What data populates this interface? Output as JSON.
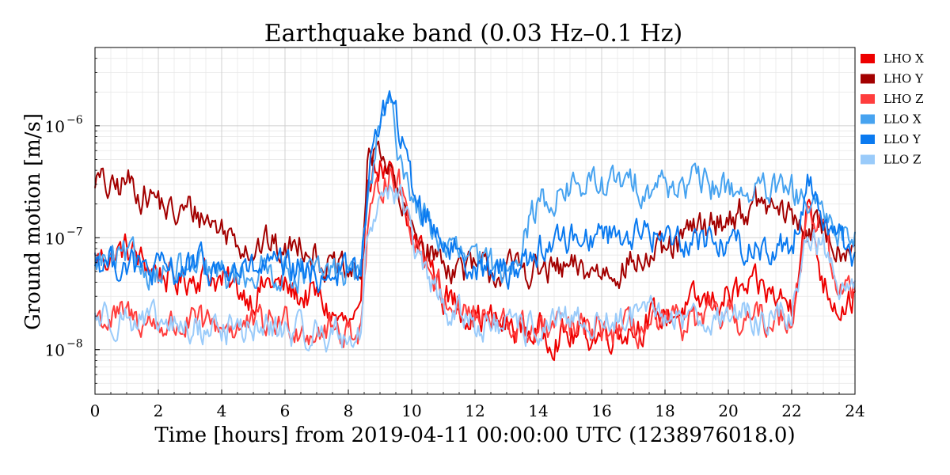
{
  "chart_data": {
    "type": "line",
    "title": "Earthquake band (0.03 Hz–0.1 Hz)",
    "xlabel": "Time [hours] from 2019-04-11 00:00:00 UTC (1238976018.0)",
    "ylabel": "Ground motion [m/s]",
    "xlim": [
      0,
      24
    ],
    "ylim": [
      4e-09,
      5e-06
    ],
    "yscale": "log",
    "grid": true,
    "legend_position": "right-outside",
    "x_ticks": [
      0,
      2,
      4,
      6,
      8,
      10,
      12,
      14,
      16,
      18,
      20,
      22,
      24
    ],
    "x_tick_labels": [
      "0",
      "2",
      "4",
      "6",
      "8",
      "10",
      "12",
      "14",
      "16",
      "18",
      "20",
      "22",
      "24"
    ],
    "y_ticks": [
      1e-08,
      1e-07,
      1e-06
    ],
    "y_tick_labels": [
      "10",
      "10",
      "10"
    ],
    "y_tick_exponents": [
      "−8",
      "−7",
      "−6"
    ],
    "x": [
      0,
      0.5,
      1,
      1.5,
      2,
      2.5,
      3,
      3.5,
      4,
      4.5,
      5,
      5.5,
      6,
      6.5,
      7,
      7.5,
      8,
      8.4,
      8.6,
      9,
      9.3,
      9.6,
      10,
      10.5,
      11,
      11.5,
      12,
      12.5,
      13,
      13.5,
      14,
      15,
      16,
      17,
      18,
      19,
      20,
      21,
      22,
      22.5,
      23,
      23.5,
      24
    ],
    "series": [
      {
        "name": "LHO X",
        "color": "#ee0000",
        "values": [
          6.5e-08,
          7e-08,
          8e-08,
          6e-08,
          5e-08,
          4e-08,
          4.5e-08,
          5e-08,
          4e-08,
          3.5e-08,
          3e-08,
          4e-08,
          3.5e-08,
          3e-08,
          3e-08,
          2e-08,
          1.6e-08,
          1.6e-08,
          4e-07,
          4.5e-07,
          3.5e-07,
          2e-07,
          1e-07,
          7e-08,
          3e-08,
          2.5e-08,
          2e-08,
          1.8e-08,
          1.6e-08,
          1.5e-08,
          1.4e-08,
          1.3e-08,
          1.4e-08,
          1.6e-08,
          2e-08,
          2.5e-08,
          3e-08,
          3.5e-08,
          2.5e-08,
          2e-07,
          4e-08,
          2.5e-08,
          3e-08
        ]
      },
      {
        "name": "LHO Y",
        "color": "#a30000",
        "values": [
          3.5e-07,
          2.5e-07,
          3.2e-07,
          2.5e-07,
          2.2e-07,
          1.5e-07,
          1.8e-07,
          1.5e-07,
          1.2e-07,
          1e-07,
          8e-08,
          9e-08,
          7e-08,
          1e-07,
          7e-08,
          5e-08,
          4.5e-08,
          5e-08,
          4e-07,
          7e-07,
          4e-07,
          2e-07,
          1.2e-07,
          8e-08,
          6e-08,
          5.5e-08,
          5e-08,
          5e-08,
          5e-08,
          5.5e-08,
          5e-08,
          5e-08,
          5e-08,
          6e-08,
          7e-08,
          1.2e-07,
          1.5e-07,
          2e-07,
          1.5e-07,
          1.2e-07,
          1.2e-07,
          8e-08,
          1e-07
        ]
      },
      {
        "name": "LHO Z",
        "color": "#ff3d3d",
        "values": [
          2e-08,
          1.8e-08,
          2e-08,
          1.8e-08,
          1.7e-08,
          1.6e-08,
          1.7e-08,
          1.6e-08,
          1.7e-08,
          1.6e-08,
          1.6e-08,
          1.7e-08,
          1.8e-08,
          1.6e-08,
          1.5e-08,
          1.5e-08,
          1.5e-08,
          1.6e-08,
          1e-07,
          3e-07,
          4e-07,
          3e-07,
          1.2e-07,
          6e-08,
          3e-08,
          2.5e-08,
          2e-08,
          1.7e-08,
          1.6e-08,
          1.5e-08,
          1.5e-08,
          1.5e-08,
          1.4e-08,
          1.5e-08,
          1.6e-08,
          1.8e-08,
          1.9e-08,
          1.8e-08,
          2e-08,
          1.8e-07,
          1.2e-07,
          3e-08,
          4e-08
        ]
      },
      {
        "name": "LLO X",
        "color": "#47a3f0",
        "values": [
          6e-08,
          6e-08,
          6.5e-08,
          5.5e-08,
          5e-08,
          5e-08,
          5e-08,
          5e-08,
          4.5e-08,
          4.5e-08,
          5e-08,
          5e-08,
          5e-08,
          5e-08,
          4.5e-08,
          5e-08,
          5e-08,
          5e-08,
          2e-07,
          1e-06,
          1.5e-06,
          6e-07,
          2.5e-07,
          1.3e-07,
          9e-08,
          7e-08,
          6e-08,
          5.5e-08,
          5.5e-08,
          1e-07,
          2e-07,
          2.8e-07,
          3e-07,
          3e-07,
          3e-07,
          3e-07,
          2.8e-07,
          2.5e-07,
          2.5e-07,
          2e-07,
          1.5e-07,
          1.2e-07,
          1e-07
        ]
      },
      {
        "name": "LLO Y",
        "color": "#0a7af0",
        "values": [
          6.5e-08,
          6e-08,
          6e-08,
          5e-08,
          5e-08,
          5e-08,
          5.5e-08,
          5.5e-08,
          5e-08,
          5e-08,
          5e-08,
          5.5e-08,
          5e-08,
          5e-08,
          4.5e-08,
          5e-08,
          5e-08,
          5e-08,
          3e-07,
          1.2e-06,
          1.8e-06,
          9e-07,
          3e-07,
          1.5e-07,
          1e-07,
          7e-08,
          6e-08,
          5e-08,
          5e-08,
          6e-08,
          8e-08,
          1e-07,
          1.1e-07,
          1.1e-07,
          1e-07,
          1e-07,
          9e-08,
          8e-08,
          8e-08,
          3.5e-07,
          1.5e-07,
          1e-07,
          7e-08
        ]
      },
      {
        "name": "LLO Z",
        "color": "#9acbfa",
        "values": [
          2e-08,
          2e-08,
          2e-08,
          1.7e-08,
          1.6e-08,
          1.6e-08,
          1.5e-08,
          1.5e-08,
          1.6e-08,
          1.5e-08,
          1.5e-08,
          1.5e-08,
          1.5e-08,
          1.4e-08,
          1.4e-08,
          1.4e-08,
          1.3e-08,
          1.4e-08,
          1e-07,
          2.5e-07,
          3e-07,
          2.5e-07,
          1e-07,
          4e-08,
          2.5e-08,
          2e-08,
          1.8e-08,
          1.6e-08,
          1.5e-08,
          1.5e-08,
          1.6e-08,
          1.7e-08,
          1.8e-08,
          1.9e-08,
          2e-08,
          2e-08,
          2e-08,
          1.9e-08,
          2e-08,
          1.2e-07,
          8e-08,
          4e-08,
          5e-08
        ]
      }
    ]
  }
}
